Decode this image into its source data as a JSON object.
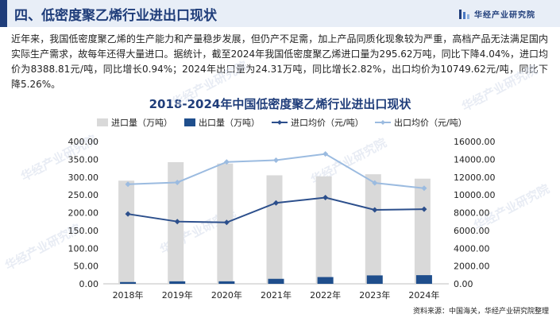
{
  "header": {
    "title": "四、低密度聚乙烯行业进出口现状",
    "logo_text": "华经产业研究院"
  },
  "paragraph": "近年来，我国低密度聚乙烯的生产能力和产量稳步发展，但仍产不足需，加上产品同质化现象较为严重，高档产品无法满足国内实际生产需求，故每年还得大量进口。据统计，截至2024年我国低密度聚乙烯进口量为295.62万吨，同比下降4.04%，进口均价为8388.81元/吨，同比增长0.94%；2024年出口量为24.31万吨，同比增长2.82%，出口均价为10749.62元/吨，同比下降5.26%。",
  "source": "资料来源：中国海关，华经产业研究院整理",
  "watermark": "华经产业研究院",
  "colors": {
    "import_bar": "#d9d9d9",
    "export_bar": "#1f4e8c",
    "import_price": "#2c4f8c",
    "export_price": "#9bbbe0",
    "header_accent": "#1f3d7a"
  },
  "chart_data": {
    "type": "bar",
    "title": "2018-2024年中国低密度聚乙烯行业进出口现状",
    "categories": [
      "2018年",
      "2019年",
      "2020年",
      "2021年",
      "2022年",
      "2023年",
      "2024年"
    ],
    "series": [
      {
        "name": "进口量（万吨）",
        "kind": "bar",
        "axis": "left",
        "values": [
          290,
          342,
          338,
          305,
          302,
          308,
          295.62
        ]
      },
      {
        "name": "出口量（万吨）",
        "kind": "bar",
        "axis": "left",
        "values": [
          5,
          7,
          7,
          14,
          19,
          23.64,
          24.31
        ]
      },
      {
        "name": "进口均价（元/吨）",
        "kind": "line",
        "axis": "right",
        "values": [
          7850,
          7000,
          6900,
          9100,
          9700,
          8311,
          8388.81
        ]
      },
      {
        "name": "出口均价（元/吨）",
        "kind": "line",
        "axis": "right",
        "values": [
          11200,
          11400,
          13700,
          13900,
          14600,
          11346,
          10749.62
        ]
      }
    ],
    "ylim_left": [
      0,
      400
    ],
    "ylim_right": [
      0,
      16000
    ],
    "yticks_left": [
      "0.00",
      "50.00",
      "100.00",
      "150.00",
      "200.00",
      "250.00",
      "300.00",
      "350.00",
      "400.00"
    ],
    "yticks_right": [
      "0.00",
      "2000.00",
      "4000.00",
      "6000.00",
      "8000.00",
      "10000.00",
      "12000.00",
      "14000.00",
      "16000.00"
    ],
    "legend_position": "top",
    "grid": false
  }
}
